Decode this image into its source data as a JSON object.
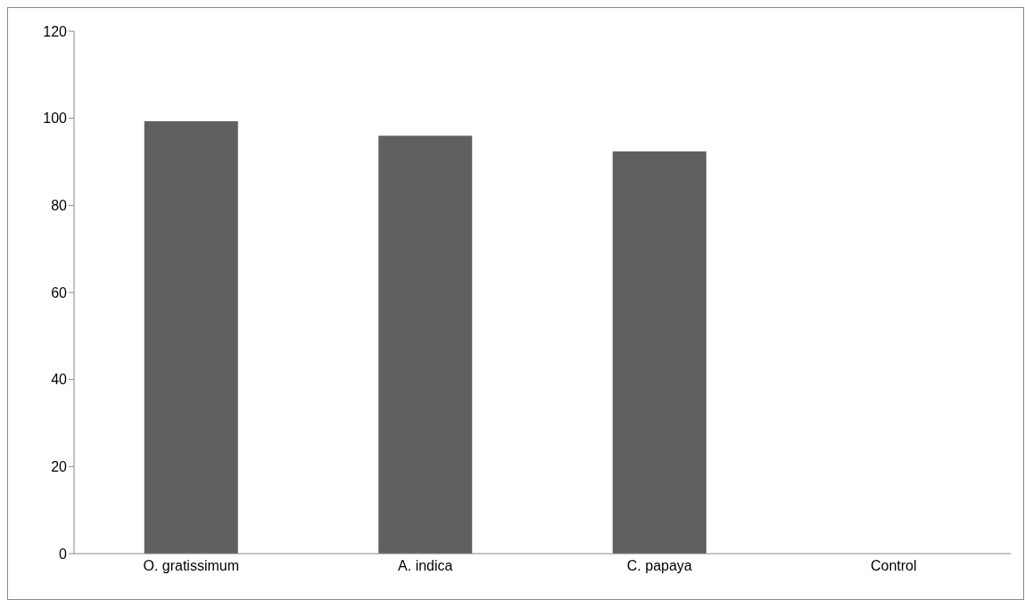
{
  "chart_data": {
    "type": "bar",
    "categories": [
      "O. gratissimum",
      "A. indica",
      "C. papaya",
      "Control"
    ],
    "values": [
      99.3,
      96.0,
      92.4,
      0
    ],
    "color": "#606060",
    "ylim": [
      0,
      120
    ],
    "yticks": [
      0,
      20,
      40,
      60,
      80,
      100,
      120
    ],
    "grid": false
  }
}
